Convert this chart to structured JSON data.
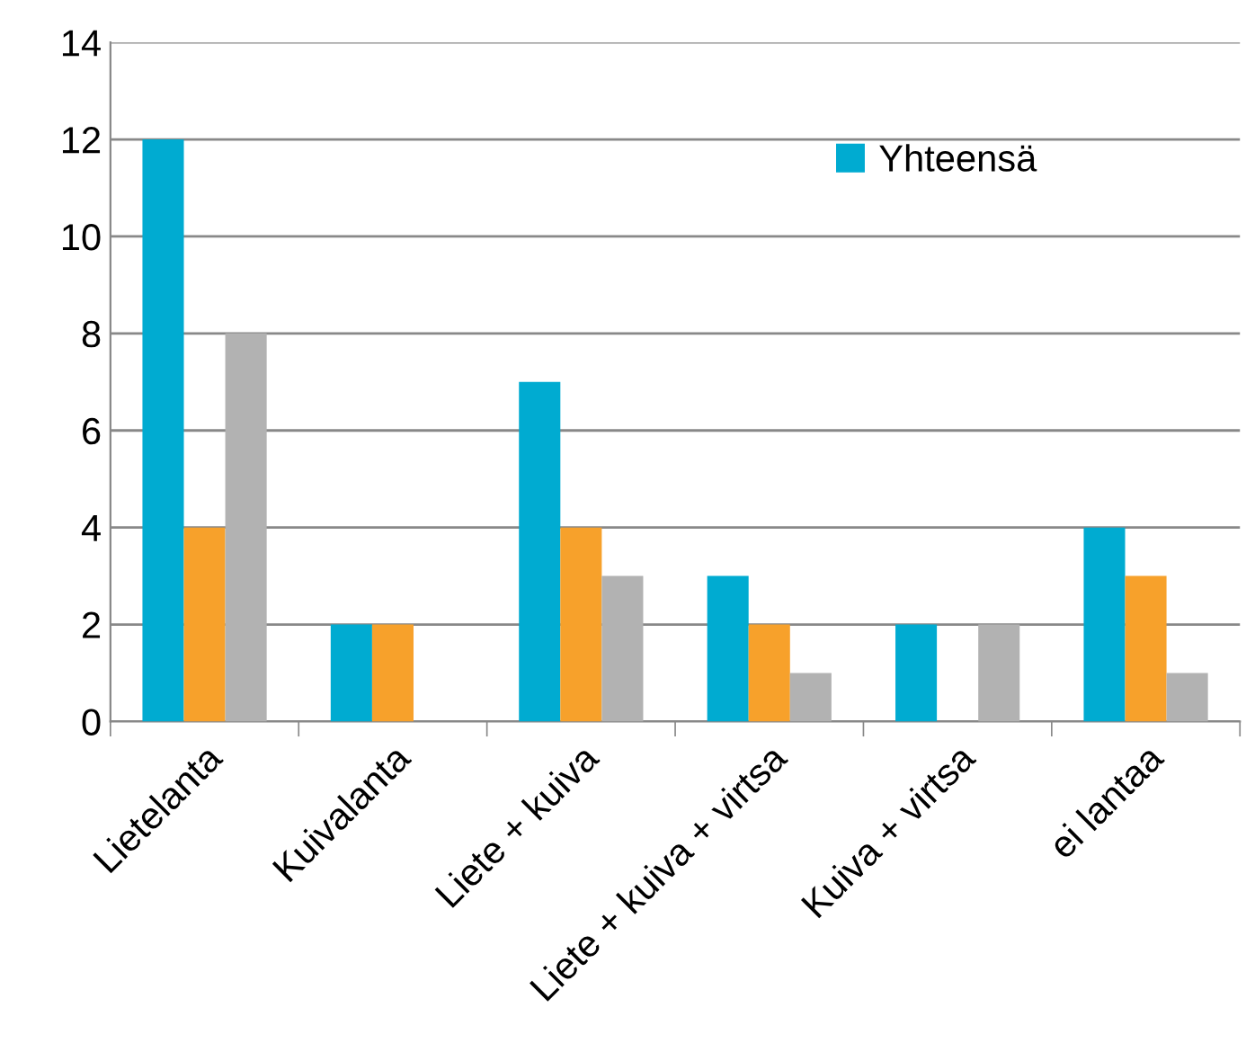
{
  "chart_data": {
    "type": "bar",
    "categories": [
      "Lietelanta",
      "Kuivalanta",
      "Liete + kuiva",
      "Liete + kuiva + virtsa",
      "Kuiva + virtsa",
      "ei lantaa"
    ],
    "series": [
      {
        "name": "Yhteensä",
        "color": "#00abd1",
        "values": [
          12,
          2,
          7,
          3,
          2,
          4
        ]
      },
      {
        "color": "#f7a12b",
        "values": [
          4,
          2,
          4,
          2,
          0,
          3
        ]
      },
      {
        "color": "#b2b2b2",
        "values": [
          8,
          0,
          3,
          1,
          2,
          1
        ]
      }
    ],
    "ylim": [
      0,
      14
    ],
    "yticks": [
      0,
      2,
      4,
      6,
      8,
      10,
      12,
      14
    ],
    "grid": "y",
    "legend": "top right"
  }
}
